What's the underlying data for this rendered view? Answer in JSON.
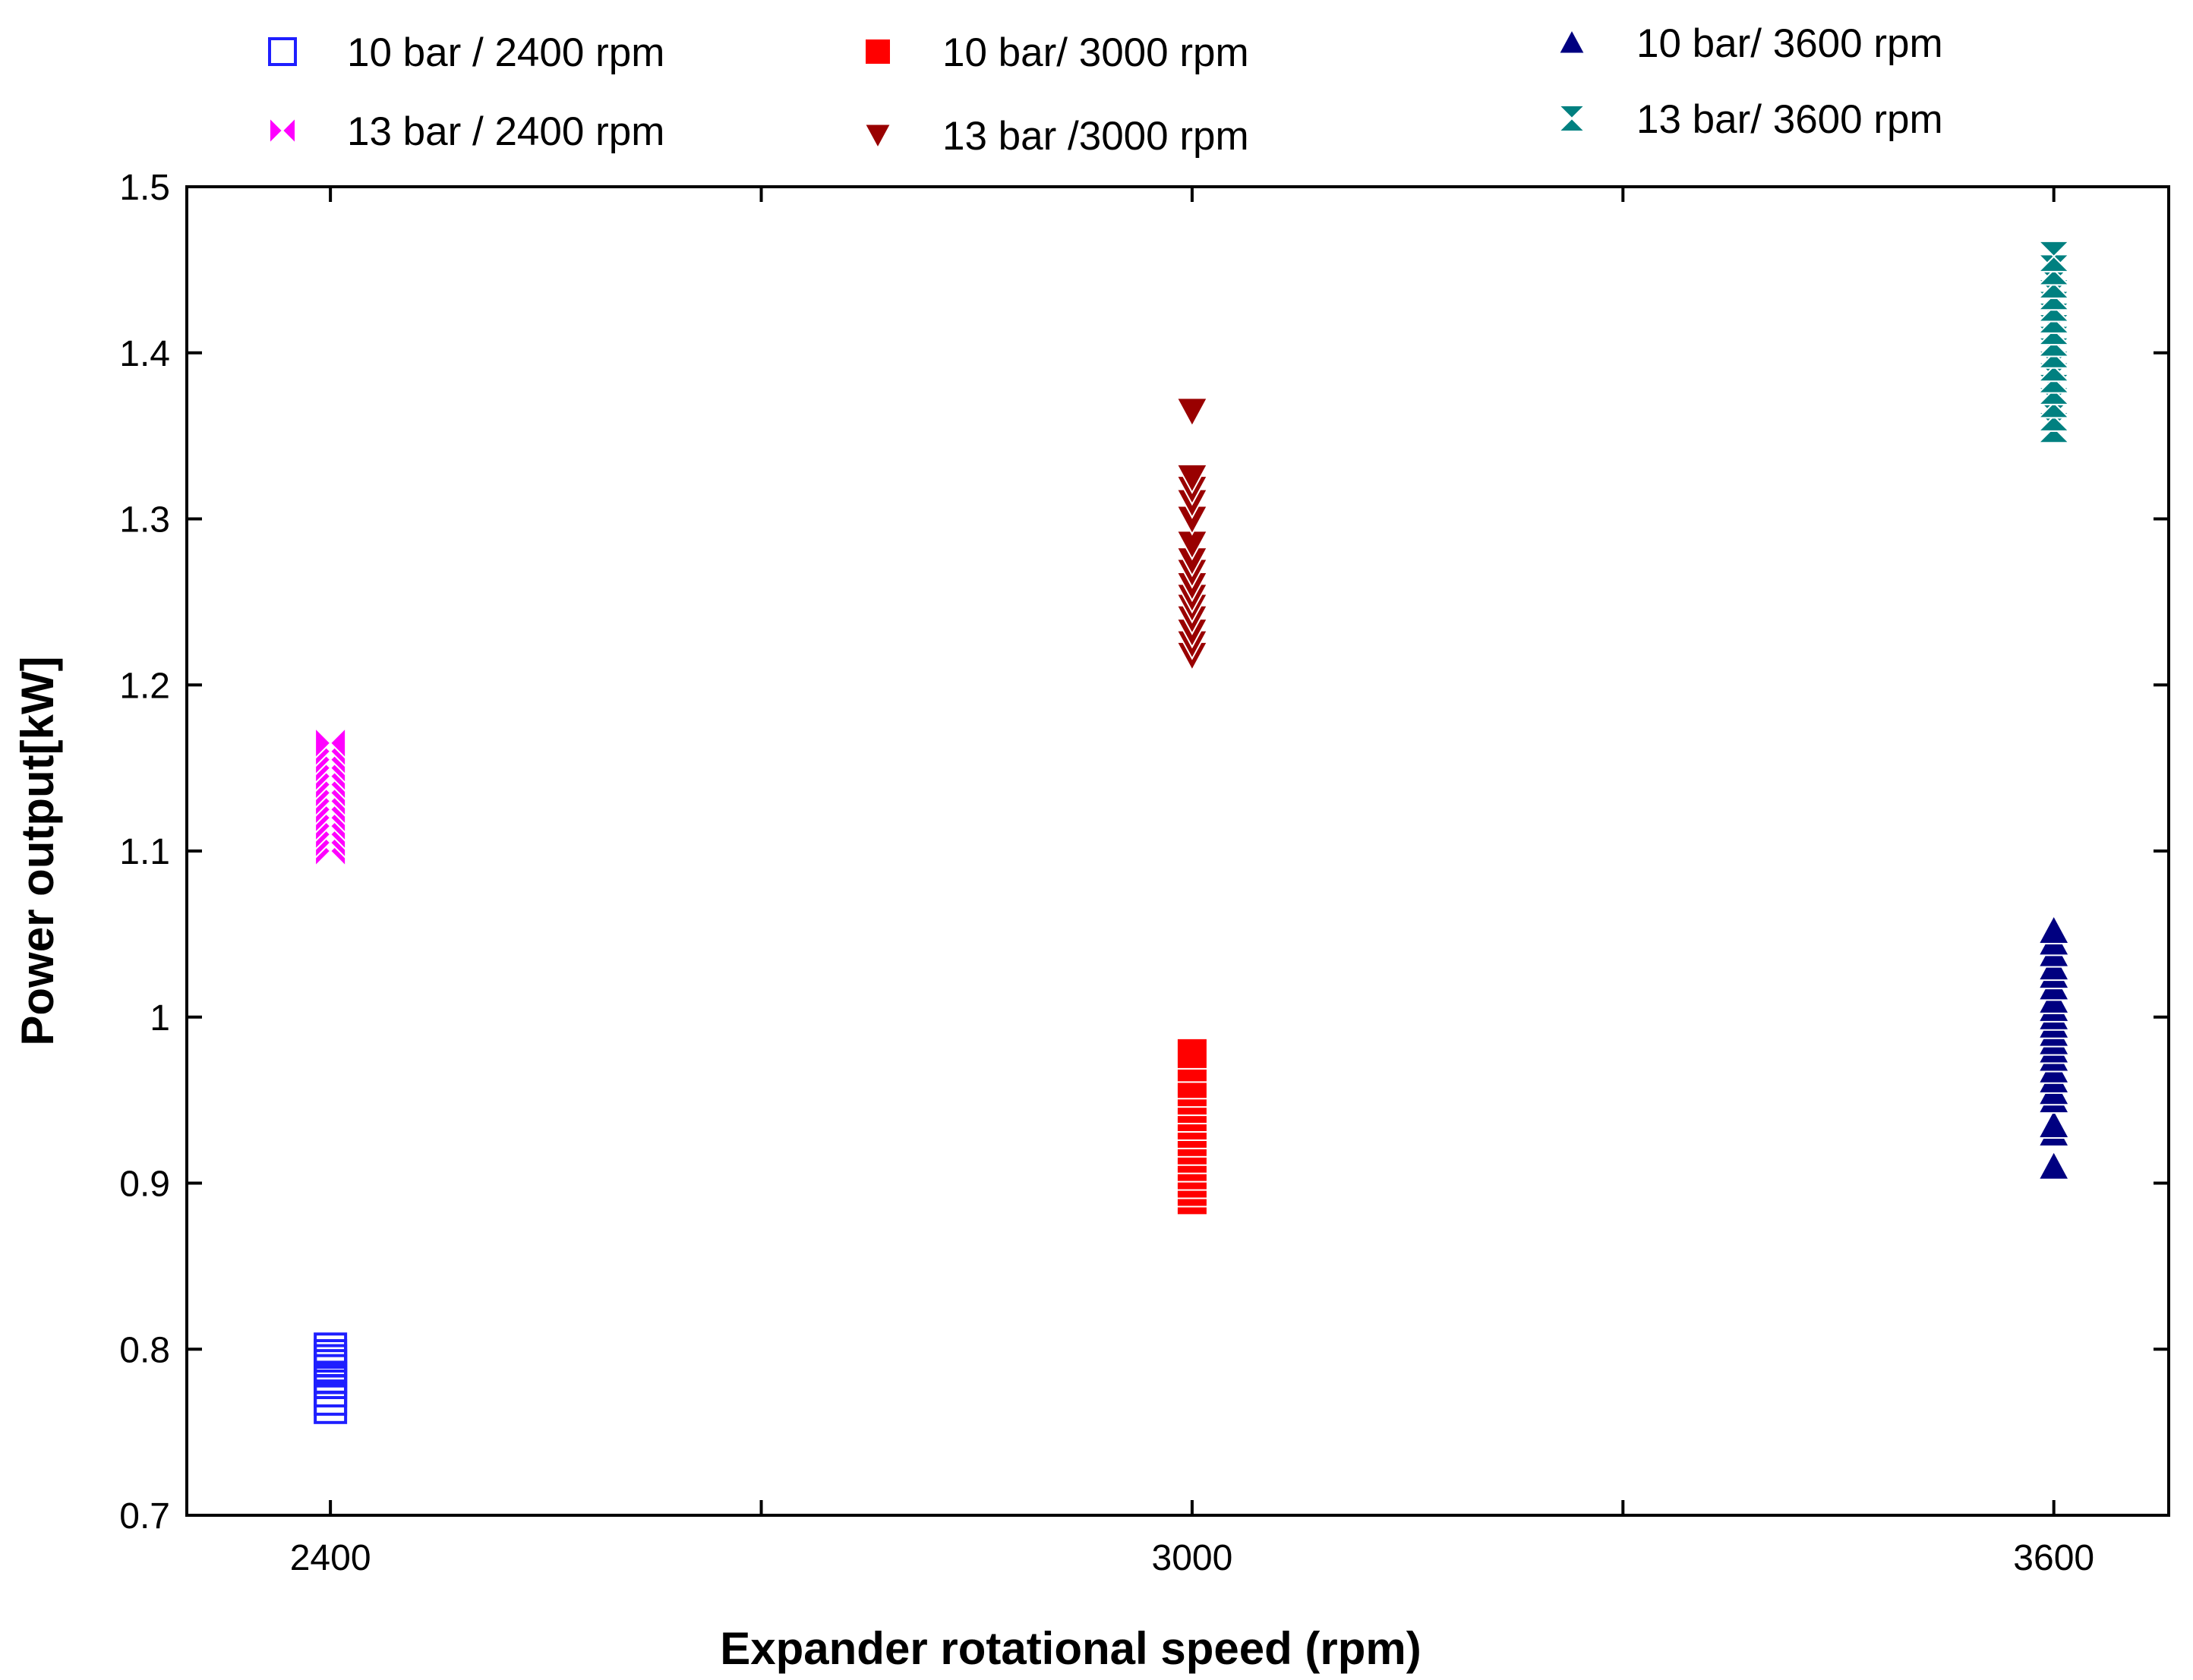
{
  "chart_data": {
    "type": "scatter",
    "title": "",
    "xlabel": "Expander rotational speed (rpm)",
    "ylabel": "Power output[kW]",
    "xlim": [
      2300,
      3680
    ],
    "ylim": [
      0.7,
      1.5
    ],
    "xticks": [
      2400,
      2700,
      3000,
      3300,
      3600
    ],
    "xtick_labels": [
      "2400",
      "",
      "3000",
      "",
      "3600"
    ],
    "yticks": [
      0.7,
      0.8,
      0.9,
      1.0,
      1.1,
      1.2,
      1.3,
      1.4,
      1.5
    ],
    "ytick_labels": [
      "0.7",
      "0.8",
      "0.9",
      "1",
      "1.1",
      "1.2",
      "1.3",
      "1.4",
      "1.5"
    ],
    "grid": false,
    "legend_position": "top",
    "series": [
      {
        "name": "10 bar / 2400 rpm",
        "marker": "open-square",
        "color": "#1f1fff",
        "x": 2400,
        "values": [
          0.765,
          0.77,
          0.775,
          0.78,
          0.783,
          0.787,
          0.79,
          0.793,
          0.796,
          0.8
        ]
      },
      {
        "name": "13 bar / 2400 rpm",
        "marker": "bowtie",
        "color": "#ff00ff",
        "x": 2400,
        "values": [
          1.1,
          1.105,
          1.11,
          1.115,
          1.12,
          1.125,
          1.13,
          1.135,
          1.14,
          1.145,
          1.15,
          1.155,
          1.16,
          1.165
        ]
      },
      {
        "name": "10 bar/ 3000 rpm",
        "marker": "filled-square",
        "color": "#ff0000",
        "x": 3000,
        "values": [
          0.89,
          0.895,
          0.9,
          0.905,
          0.91,
          0.915,
          0.92,
          0.925,
          0.93,
          0.935,
          0.94,
          0.945,
          0.95,
          0.955,
          0.96,
          0.97,
          0.978
        ]
      },
      {
        "name": "13 bar /3000 rpm",
        "marker": "triangle-down",
        "color": "#990000",
        "x": 3000,
        "values": [
          1.218,
          1.225,
          1.232,
          1.24,
          1.247,
          1.253,
          1.26,
          1.268,
          1.275,
          1.285,
          1.3,
          1.31,
          1.318,
          1.325,
          1.365
        ]
      },
      {
        "name": "10 bar/ 3600 rpm",
        "marker": "triangle-up",
        "color": "#000080",
        "x": 3600,
        "values": [
          0.91,
          0.93,
          0.935,
          0.95,
          0.955,
          0.962,
          0.968,
          0.975,
          0.98,
          0.985,
          0.99,
          0.995,
          1.0,
          1.005,
          1.01,
          1.018,
          1.025,
          1.03,
          1.038,
          1.045,
          1.052
        ]
      },
      {
        "name": "13 bar/ 3600 rpm",
        "marker": "hourglass",
        "color": "#008080",
        "x": 3600,
        "values": [
          1.355,
          1.362,
          1.37,
          1.378,
          1.385,
          1.392,
          1.4,
          1.407,
          1.414,
          1.421,
          1.428,
          1.435,
          1.442,
          1.45,
          1.458
        ]
      }
    ]
  }
}
